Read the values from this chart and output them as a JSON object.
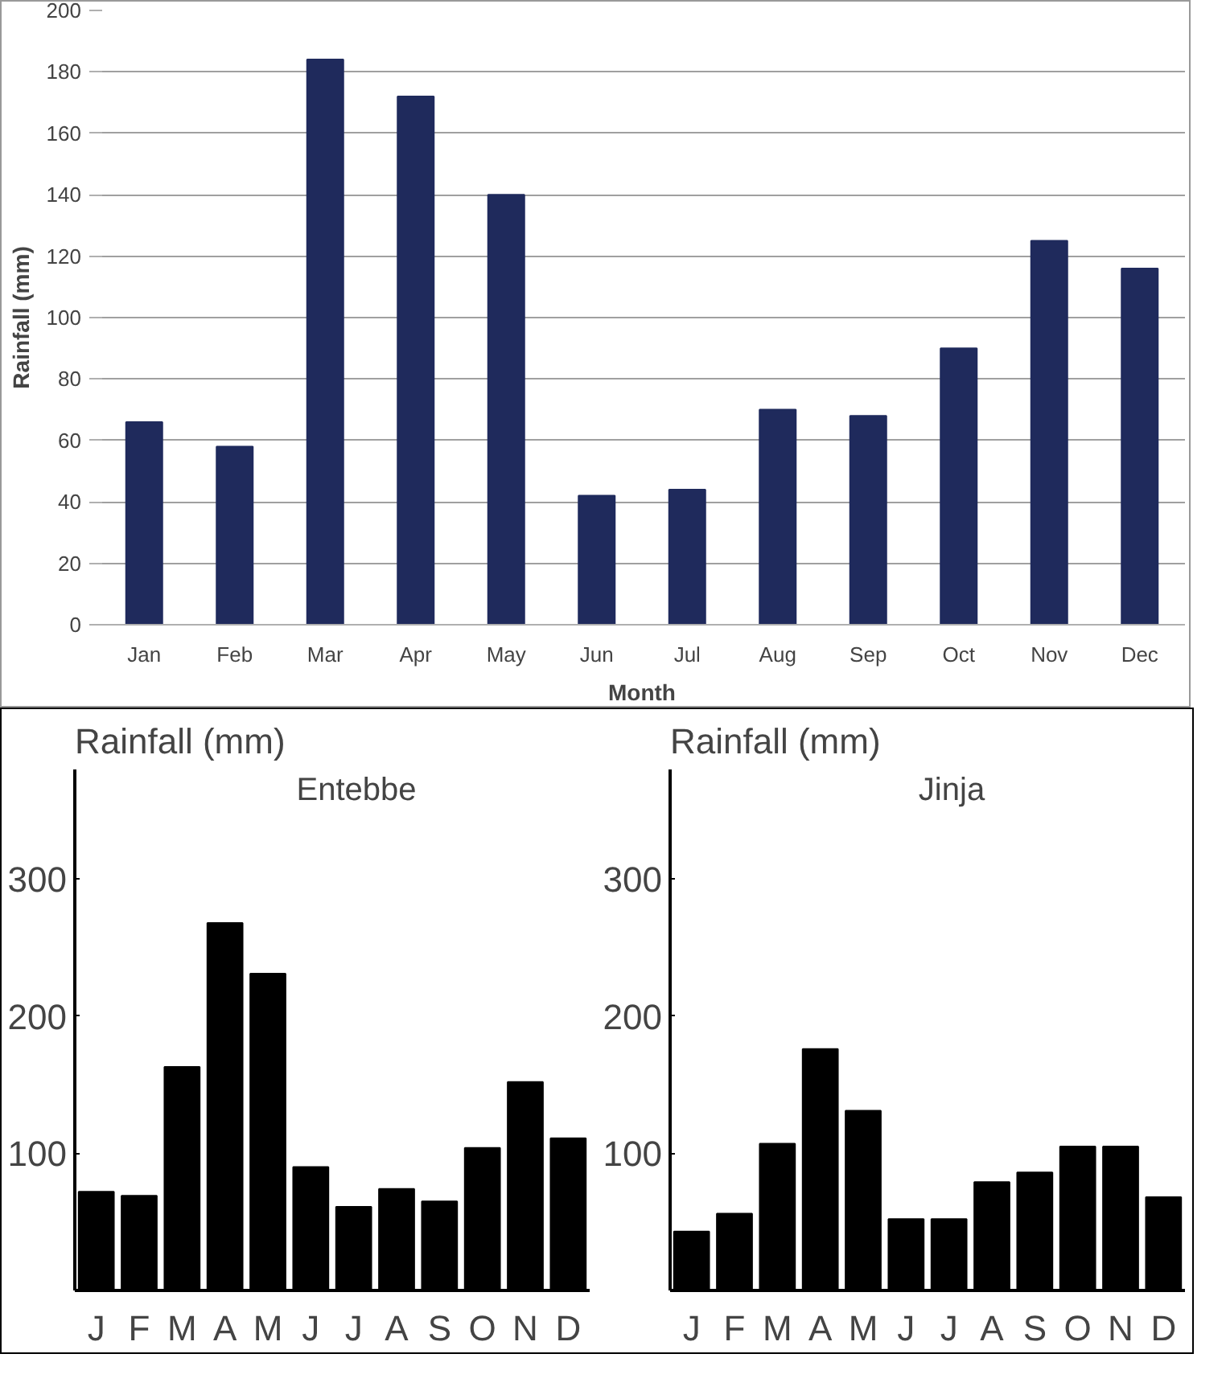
{
  "chart_data": [
    {
      "type": "bar",
      "xlabel": "Month",
      "ylabel": "Rainfall (mm)",
      "categories": [
        "Jan",
        "Feb",
        "Mar",
        "Apr",
        "May",
        "Jun",
        "Jul",
        "Aug",
        "Sep",
        "Oct",
        "Nov",
        "Dec"
      ],
      "values": [
        66,
        58,
        184,
        172,
        140,
        42,
        44,
        70,
        68,
        90,
        125,
        116
      ],
      "color": "#1f2a5c",
      "ylim": [
        0,
        200
      ],
      "yticks": [
        0,
        20,
        40,
        60,
        80,
        100,
        120,
        140,
        160,
        180,
        200
      ],
      "grid": "y"
    },
    {
      "type": "bar",
      "title": "Rainfall (mm)",
      "subtitle": "Entebbe",
      "categories": [
        "J",
        "F",
        "M",
        "A",
        "M",
        "J",
        "J",
        "A",
        "S",
        "O",
        "N",
        "D"
      ],
      "values": [
        72,
        69,
        163,
        268,
        231,
        90,
        61,
        74,
        65,
        104,
        152,
        111
      ],
      "color": "#000000",
      "ylim": [
        0,
        380
      ],
      "yticks": [
        100,
        200,
        300
      ]
    },
    {
      "type": "bar",
      "title": "Rainfall (mm)",
      "subtitle": "Jinja",
      "categories": [
        "J",
        "F",
        "M",
        "A",
        "M",
        "J",
        "J",
        "A",
        "S",
        "O",
        "N",
        "D"
      ],
      "values": [
        43,
        56,
        107,
        176,
        131,
        52,
        52,
        79,
        86,
        105,
        105,
        68
      ],
      "color": "#000000",
      "ylim": [
        0,
        380
      ],
      "yticks": [
        100,
        200,
        300
      ]
    }
  ]
}
